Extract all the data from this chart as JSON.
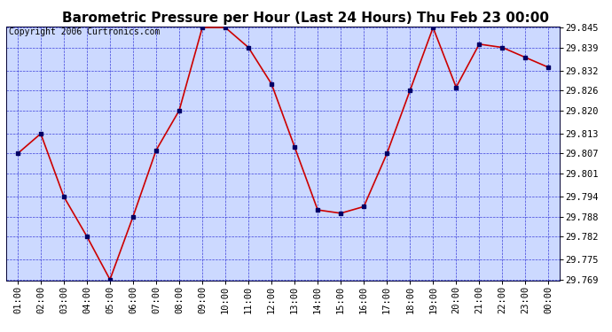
{
  "title": "Barometric Pressure per Hour (Last 24 Hours) Thu Feb 23 00:00",
  "copyright": "Copyright 2006 Curtronics.com",
  "x_labels": [
    "01:00",
    "02:00",
    "03:00",
    "04:00",
    "05:00",
    "06:00",
    "07:00",
    "08:00",
    "09:00",
    "10:00",
    "11:00",
    "12:00",
    "13:00",
    "14:00",
    "15:00",
    "16:00",
    "17:00",
    "18:00",
    "19:00",
    "20:00",
    "21:00",
    "22:00",
    "23:00",
    "00:00"
  ],
  "y_values": [
    29.807,
    29.813,
    29.794,
    29.782,
    29.769,
    29.788,
    29.808,
    29.82,
    29.845,
    29.845,
    29.839,
    29.828,
    29.809,
    29.79,
    29.789,
    29.791,
    29.807,
    29.826,
    29.845,
    29.827,
    29.84,
    29.839,
    29.836,
    29.833
  ],
  "y_ticks": [
    29.769,
    29.775,
    29.782,
    29.788,
    29.794,
    29.801,
    29.807,
    29.813,
    29.82,
    29.826,
    29.832,
    29.839,
    29.845
  ],
  "y_min": 29.769,
  "y_max": 29.845,
  "line_color": "#cc0000",
  "marker_color": "#000066",
  "bg_color": "#ccd9ff",
  "grid_color": "#0000cc",
  "title_fontsize": 11,
  "copyright_fontsize": 7,
  "tick_fontsize": 7.5,
  "title_bg": "#ffffff"
}
